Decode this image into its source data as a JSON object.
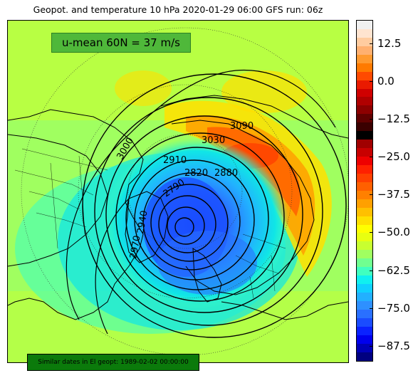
{
  "title": "Geopot. and temperature 10 hPa 2020-01-29 06:00 GFS run: 06z",
  "umean_label": "u-mean 60N = 37 m/s",
  "similar_dates_label": "Similar dates in El geopt: 1989-02-02 00:00:00",
  "colorbar": {
    "ticks": [
      "12.5",
      "0.0",
      "−12.5",
      "−25.0",
      "−37.5",
      "−50.0",
      "−62.5",
      "−75.0",
      "−87.5"
    ],
    "tick_values": [
      12.5,
      0.0,
      -12.5,
      -25.0,
      -37.5,
      -50.0,
      -62.5,
      -75.0,
      -87.5
    ],
    "range": [
      -92.5,
      20.0
    ],
    "colors": [
      "#000080",
      "#0000b8",
      "#0000ee",
      "#0a22ff",
      "#1a4cff",
      "#2a70ff",
      "#2e90ff",
      "#22b0ff",
      "#10d0ff",
      "#10f0f0",
      "#40ffc0",
      "#70ff90",
      "#a0ff60",
      "#c8ff30",
      "#e8ff10",
      "#ffff00",
      "#ffe000",
      "#ffc000",
      "#ffa000",
      "#ff8000",
      "#ff6000",
      "#ff4000",
      "#ff2000",
      "#ee0000",
      "#c80000",
      "#a00000",
      "#000000",
      "#3a0000",
      "#600000",
      "#8c0000",
      "#b00000",
      "#d00000",
      "#ea1a00",
      "#ff4a00",
      "#ff7a00",
      "#ff9a30",
      "#ffb070",
      "#ffcca0",
      "#ffe4d0",
      "#f0f0f0"
    ]
  },
  "contour_labels": [
    "3090",
    "3030",
    "2910",
    "2880",
    "2820",
    "2790",
    "2970",
    "2940",
    "3000"
  ]
}
